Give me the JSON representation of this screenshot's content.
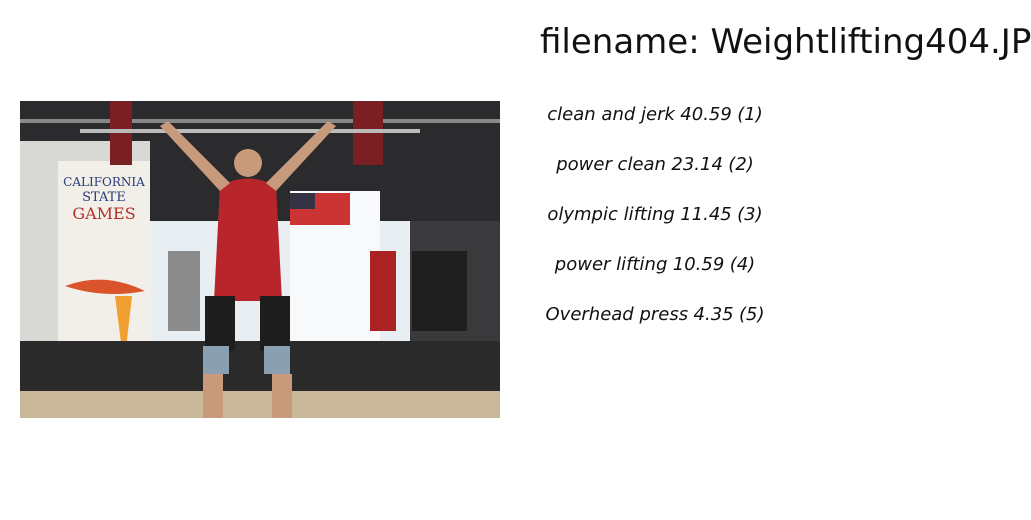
{
  "header": {
    "title": "filename: Weightlifting404.JP"
  },
  "predictions": [
    {
      "label": "clean and jerk",
      "score": 40.59,
      "rank": "(1)"
    },
    {
      "label": "power clean",
      "score": 23.14,
      "rank": "(2)"
    },
    {
      "label": "olympic lifting",
      "score": 11.45,
      "rank": "(3)"
    },
    {
      "label": "power lifting",
      "score": 10.59,
      "rank": "(4)"
    },
    {
      "label": "Overhead press",
      "score": 4.35,
      "rank": "(5)"
    }
  ]
}
